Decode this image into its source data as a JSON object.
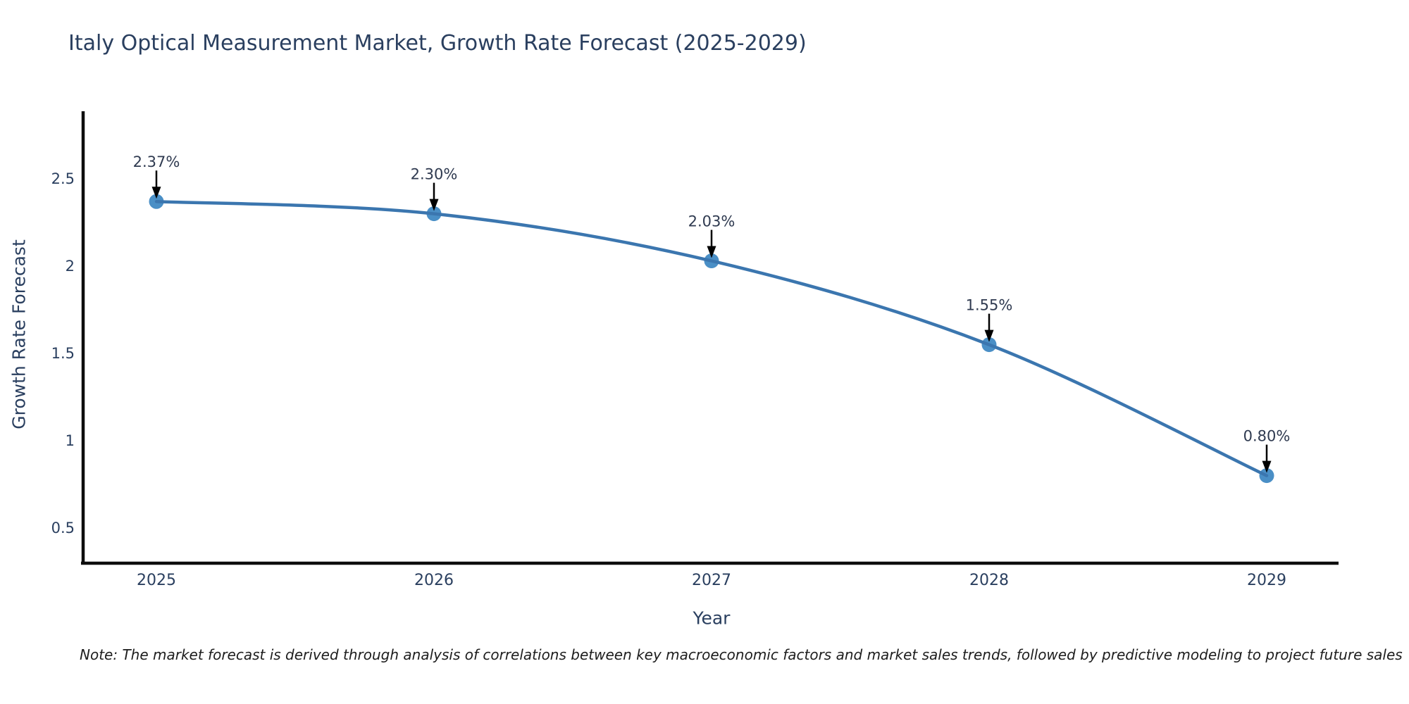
{
  "title": "Italy Optical Measurement Market, Growth Rate Forecast (2025-2029)",
  "note": "Note: The market forecast is derived through analysis of correlations between key macroeconomic factors and market sales trends, followed by predictive modeling to project future sales",
  "chart_data": {
    "type": "line",
    "title": "Italy Optical Measurement Market, Growth Rate Forecast (2025-2029)",
    "xlabel": "Year",
    "ylabel": "Growth Rate Forecast",
    "x": [
      2025,
      2026,
      2027,
      2028,
      2029
    ],
    "values": [
      2.37,
      2.3,
      2.03,
      1.55,
      0.8
    ],
    "point_labels": [
      "2.37%",
      "2.30%",
      "2.03%",
      "1.55%",
      "0.80%"
    ],
    "x_tick_labels": [
      "2025",
      "2026",
      "2027",
      "2028",
      "2029"
    ],
    "y_ticks": [
      0.5,
      1,
      1.5,
      2,
      2.5
    ],
    "y_tick_labels": [
      "0.5",
      "1",
      "1.5",
      "2",
      "2.5"
    ],
    "xlim": [
      2024.73,
      2029.26
    ],
    "ylim": [
      0.3,
      2.89
    ],
    "grid": false,
    "legend": "none",
    "line_shape": "spline",
    "colors": {
      "line": "#3b76af",
      "marker": "#4a8fc6",
      "arrow": "#000000",
      "axis": "#0d0d0d",
      "text": "#2a3f5f"
    }
  }
}
